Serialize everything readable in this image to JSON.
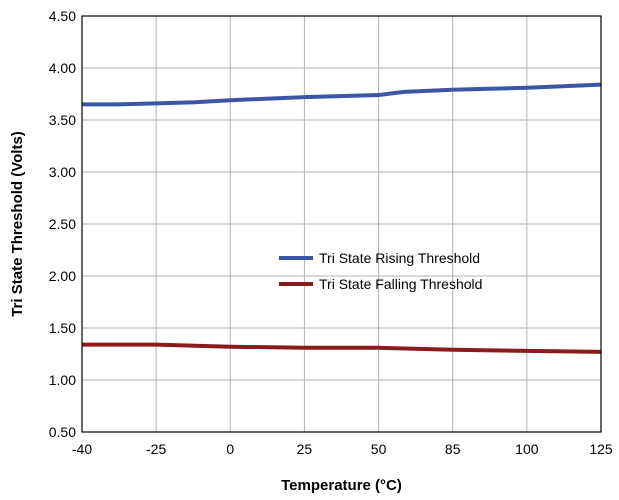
{
  "chart_data": {
    "type": "line",
    "xlabel": "Temperature (°C)",
    "ylabel": "Tri State Threshold (Volts)",
    "categories": [
      "-40",
      "-25",
      "0",
      "25",
      "50",
      "85",
      "100",
      "125"
    ],
    "ylim": [
      0.5,
      4.5
    ],
    "yticks": [
      "0.50",
      "1.00",
      "1.50",
      "2.00",
      "2.50",
      "3.00",
      "3.50",
      "4.00",
      "4.50"
    ],
    "grid": true,
    "legend_position": "center-right",
    "series": [
      {
        "name": "Tri State Rising Threshold",
        "color": "#3b56a6",
        "x": [
          -40,
          -33,
          -25,
          -12,
          0,
          25,
          50,
          62,
          85,
          100,
          125
        ],
        "values": [
          3.65,
          3.65,
          3.66,
          3.67,
          3.69,
          3.72,
          3.74,
          3.77,
          3.79,
          3.81,
          3.84
        ]
      },
      {
        "name": "Tri State Falling Threshold",
        "color": "#8b1a1a",
        "x": [
          -40,
          -25,
          0,
          25,
          50,
          85,
          100,
          125
        ],
        "values": [
          1.34,
          1.34,
          1.32,
          1.31,
          1.31,
          1.29,
          1.28,
          1.27
        ]
      }
    ]
  }
}
